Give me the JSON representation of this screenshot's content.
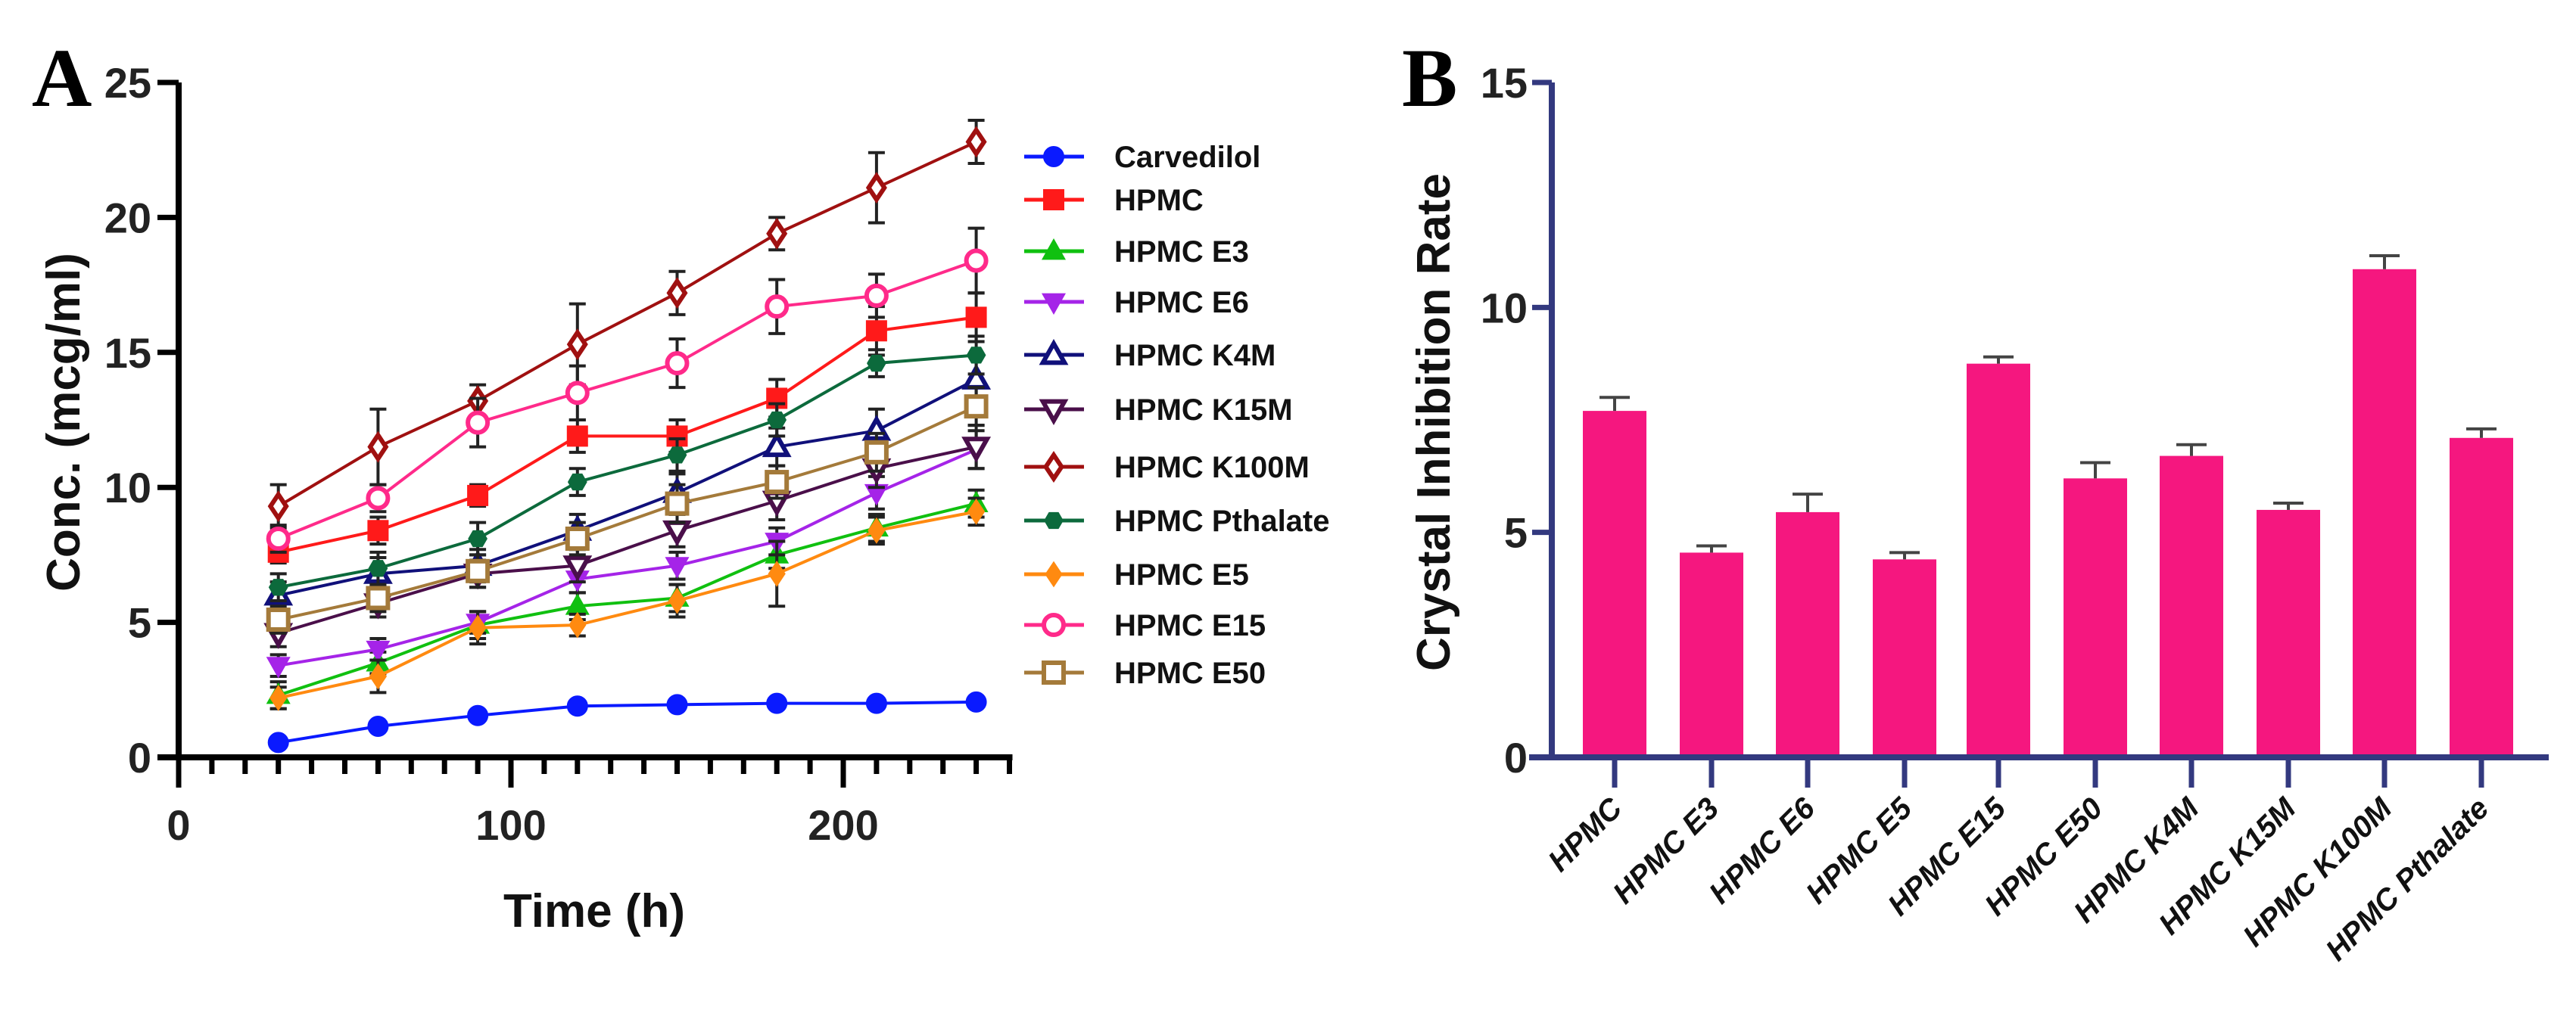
{
  "chart_data": [
    {
      "type": "line",
      "panel_label": "A",
      "xlabel": "Time (h)",
      "ylabel": "Conc. (mcg/ml)",
      "xlim": [
        0,
        250
      ],
      "ylim": [
        0,
        25
      ],
      "xticks": [
        "0",
        "100",
        "200"
      ],
      "yticks": [
        "0",
        "5",
        "10",
        "15",
        "20",
        "25"
      ],
      "legend_position": "right",
      "x": [
        30,
        60,
        90,
        120,
        150,
        180,
        210,
        240
      ],
      "series": [
        {
          "name": "Carvedilol",
          "color": "#0a1aff",
          "marker": "circle-filled",
          "values": [
            0.55,
            1.15,
            1.55,
            1.9,
            1.95,
            2.0,
            2.0,
            2.05
          ],
          "errors": [
            0.1,
            0.1,
            0.1,
            0.1,
            0.1,
            0.1,
            0.1,
            0.1
          ]
        },
        {
          "name": "HPMC",
          "color": "#ff1a1a",
          "marker": "square-filled",
          "values": [
            7.6,
            8.4,
            9.7,
            11.9,
            11.9,
            13.3,
            15.8,
            16.3
          ],
          "errors": [
            0.4,
            0.5,
            0.4,
            0.6,
            0.6,
            0.7,
            0.9,
            0.9
          ]
        },
        {
          "name": "HPMC E3",
          "color": "#10c010",
          "marker": "triangle-up-filled",
          "values": [
            2.3,
            3.5,
            4.9,
            5.6,
            5.9,
            7.5,
            8.5,
            9.4
          ],
          "errors": [
            0.5,
            0.4,
            0.5,
            0.5,
            0.5,
            0.5,
            0.5,
            0.5
          ]
        },
        {
          "name": "HPMC E6",
          "color": "#a524e8",
          "marker": "triangle-down-filled",
          "values": [
            3.4,
            4.0,
            5.0,
            6.6,
            7.1,
            8.0,
            9.8,
            11.4
          ],
          "errors": [
            0.4,
            0.4,
            0.4,
            0.5,
            0.5,
            0.5,
            0.6,
            0.7
          ]
        },
        {
          "name": "HPMC K4M",
          "color": "#10107a",
          "marker": "triangle-up-open",
          "values": [
            6.0,
            6.8,
            7.1,
            8.4,
            9.8,
            11.5,
            12.1,
            14.0
          ],
          "errors": [
            0.5,
            0.6,
            0.6,
            0.6,
            0.7,
            0.7,
            0.8,
            0.9
          ]
        },
        {
          "name": "HPMC K15M",
          "color": "#4a0f4a",
          "marker": "triangle-down-open",
          "values": [
            4.6,
            5.7,
            6.8,
            7.1,
            8.4,
            9.5,
            10.7,
            11.5
          ],
          "errors": [
            0.5,
            0.5,
            0.5,
            0.6,
            0.6,
            0.7,
            0.7,
            0.8
          ]
        },
        {
          "name": "HPMC K100M",
          "color": "#a01010",
          "marker": "diamond-open",
          "values": [
            9.3,
            11.5,
            13.2,
            15.3,
            17.2,
            19.4,
            21.1,
            22.8
          ],
          "errors": [
            0.8,
            1.4,
            0.6,
            1.5,
            0.8,
            0.6,
            1.3,
            0.8
          ]
        },
        {
          "name": "HPMC Pthalate",
          "color": "#0c6a3c",
          "marker": "hexagon-filled",
          "values": [
            6.3,
            7.0,
            8.1,
            10.2,
            11.2,
            12.5,
            14.6,
            14.9
          ],
          "errors": [
            0.5,
            0.6,
            0.6,
            0.5,
            0.6,
            0.6,
            0.5,
            0.7
          ]
        },
        {
          "name": "HPMC E5",
          "color": "#ff8a10",
          "marker": "diamond-filled",
          "values": [
            2.2,
            3.0,
            4.8,
            4.9,
            5.8,
            6.8,
            8.4,
            9.1
          ],
          "errors": [
            0.4,
            0.6,
            0.6,
            0.4,
            0.6,
            1.2,
            0.5,
            0.5
          ]
        },
        {
          "name": "HPMC E15",
          "color": "#ff2a8a",
          "marker": "circle-open",
          "values": [
            8.1,
            9.6,
            12.4,
            13.5,
            14.6,
            16.7,
            17.1,
            18.4
          ],
          "errors": [
            0.5,
            0.5,
            0.9,
            1.0,
            0.9,
            1.0,
            0.8,
            1.2
          ]
        },
        {
          "name": "HPMC E50",
          "color": "#a47a3a",
          "marker": "square-open",
          "values": [
            5.1,
            5.9,
            6.9,
            8.1,
            9.4,
            10.2,
            11.3,
            13.0
          ],
          "errors": [
            0.5,
            0.5,
            0.6,
            0.6,
            0.7,
            0.6,
            0.7,
            0.7
          ]
        }
      ]
    },
    {
      "type": "bar",
      "panel_label": "B",
      "xlabel": "",
      "ylabel": "Crystal Inhibition Rate",
      "ylim": [
        0,
        15
      ],
      "yticks": [
        "0",
        "5",
        "10",
        "15"
      ],
      "bar_color": "#f5177f",
      "axis_color": "#33397f",
      "categories": [
        "HPMC",
        "HPMC E3",
        "HPMC E6",
        "HPMC E5",
        "HPMC E15",
        "HPMC E50",
        "HPMC K4M",
        "HPMC K15M",
        "HPMC K100M",
        "HPMC Pthalate"
      ],
      "values": [
        7.7,
        4.55,
        5.45,
        4.4,
        8.75,
        6.2,
        6.7,
        5.5,
        10.85,
        7.1
      ],
      "errors": [
        0.3,
        0.15,
        0.4,
        0.15,
        0.15,
        0.35,
        0.25,
        0.15,
        0.3,
        0.2
      ]
    }
  ]
}
